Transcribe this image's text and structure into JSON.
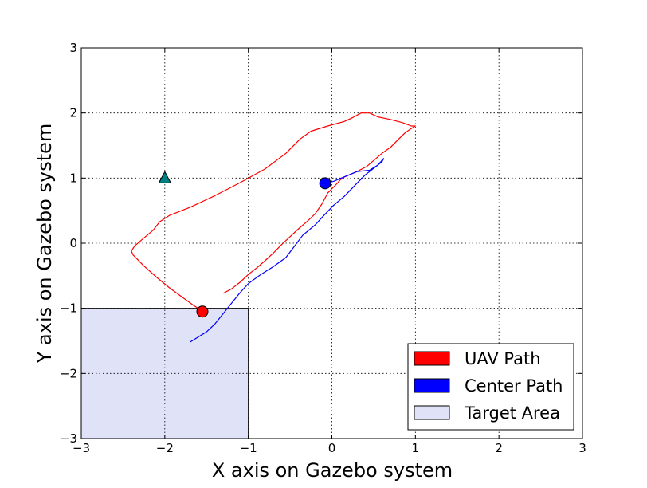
{
  "chart_data": {
    "type": "line",
    "xlabel": "X axis on Gazebo system",
    "ylabel": "Y axis on Gazebo system",
    "xlim": [
      -3,
      3
    ],
    "ylim": [
      -3,
      3
    ],
    "x_ticks": [
      -3,
      -2,
      -1,
      0,
      1,
      2,
      3
    ],
    "y_ticks": [
      -3,
      -2,
      -1,
      0,
      1,
      2,
      3
    ],
    "grid": true,
    "legend_position": "lower right",
    "target_area": {
      "name": "Target Area",
      "x": [
        -3,
        -1
      ],
      "y": [
        -3,
        -1
      ],
      "color": "#e0e2f8"
    },
    "series": [
      {
        "name": "UAV Path",
        "color": "#ff0000",
        "points": [
          [
            -1.55,
            -1.04
          ],
          [
            -1.65,
            -0.96
          ],
          [
            -1.8,
            -0.82
          ],
          [
            -1.95,
            -0.68
          ],
          [
            -2.1,
            -0.52
          ],
          [
            -2.25,
            -0.35
          ],
          [
            -2.38,
            -0.18
          ],
          [
            -2.4,
            -0.12
          ],
          [
            -2.36,
            -0.04
          ],
          [
            -2.26,
            0.07
          ],
          [
            -2.14,
            0.2
          ],
          [
            -2.06,
            0.33
          ],
          [
            -1.94,
            0.43
          ],
          [
            -1.7,
            0.55
          ],
          [
            -1.4,
            0.73
          ],
          [
            -1.1,
            0.93
          ],
          [
            -0.8,
            1.14
          ],
          [
            -0.55,
            1.38
          ],
          [
            -0.38,
            1.6
          ],
          [
            -0.25,
            1.72
          ],
          [
            -0.05,
            1.8
          ],
          [
            0.15,
            1.87
          ],
          [
            0.25,
            1.93
          ],
          [
            0.35,
            2.0
          ],
          [
            0.45,
            2.0
          ],
          [
            0.55,
            1.94
          ],
          [
            0.7,
            1.9
          ],
          [
            0.85,
            1.85
          ],
          [
            0.95,
            1.8
          ],
          [
            1.0,
            1.8
          ],
          [
            0.95,
            1.76
          ],
          [
            0.88,
            1.7
          ],
          [
            0.8,
            1.6
          ],
          [
            0.7,
            1.47
          ],
          [
            0.6,
            1.38
          ],
          [
            0.5,
            1.27
          ],
          [
            0.42,
            1.18
          ],
          [
            0.3,
            1.1
          ],
          [
            0.12,
            1.0
          ],
          [
            0.05,
            0.9
          ],
          [
            -0.05,
            0.77
          ],
          [
            -0.12,
            0.6
          ],
          [
            -0.2,
            0.45
          ],
          [
            -0.3,
            0.33
          ],
          [
            -0.4,
            0.22
          ],
          [
            -0.5,
            0.1
          ],
          [
            -0.6,
            -0.02
          ],
          [
            -0.7,
            -0.15
          ],
          [
            -0.8,
            -0.27
          ],
          [
            -0.9,
            -0.38
          ],
          [
            -1.0,
            -0.48
          ],
          [
            -1.1,
            -0.6
          ],
          [
            -1.2,
            -0.7
          ],
          [
            -1.3,
            -0.77
          ]
        ]
      },
      {
        "name": "Center Path",
        "color": "#0000ff",
        "points": [
          [
            -1.7,
            -1.52
          ],
          [
            -1.6,
            -1.44
          ],
          [
            -1.5,
            -1.36
          ],
          [
            -1.4,
            -1.24
          ],
          [
            -1.3,
            -1.08
          ],
          [
            -1.2,
            -0.92
          ],
          [
            -1.1,
            -0.76
          ],
          [
            -1.0,
            -0.62
          ],
          [
            -0.85,
            -0.48
          ],
          [
            -0.7,
            -0.36
          ],
          [
            -0.55,
            -0.22
          ],
          [
            -0.45,
            -0.05
          ],
          [
            -0.35,
            0.12
          ],
          [
            -0.2,
            0.28
          ],
          [
            -0.1,
            0.42
          ],
          [
            0.02,
            0.58
          ],
          [
            0.15,
            0.72
          ],
          [
            0.3,
            0.92
          ],
          [
            0.4,
            1.05
          ],
          [
            0.5,
            1.15
          ],
          [
            0.6,
            1.25
          ],
          [
            0.62,
            1.3
          ],
          [
            0.55,
            1.2
          ],
          [
            0.45,
            1.12
          ],
          [
            0.3,
            1.1
          ],
          [
            0.15,
            1.02
          ],
          [
            0.02,
            0.95
          ],
          [
            -0.08,
            0.92
          ]
        ]
      }
    ],
    "markers": [
      {
        "name": "UAV Position",
        "shape": "circle",
        "x": -1.55,
        "y": -1.05,
        "color": "#ff0000"
      },
      {
        "name": "Center Position",
        "shape": "circle",
        "x": -0.08,
        "y": 0.92,
        "color": "#0000ff"
      },
      {
        "name": "Target Point",
        "shape": "triangle",
        "x": -2.0,
        "y": 1.0,
        "color": "#008080"
      }
    ]
  }
}
